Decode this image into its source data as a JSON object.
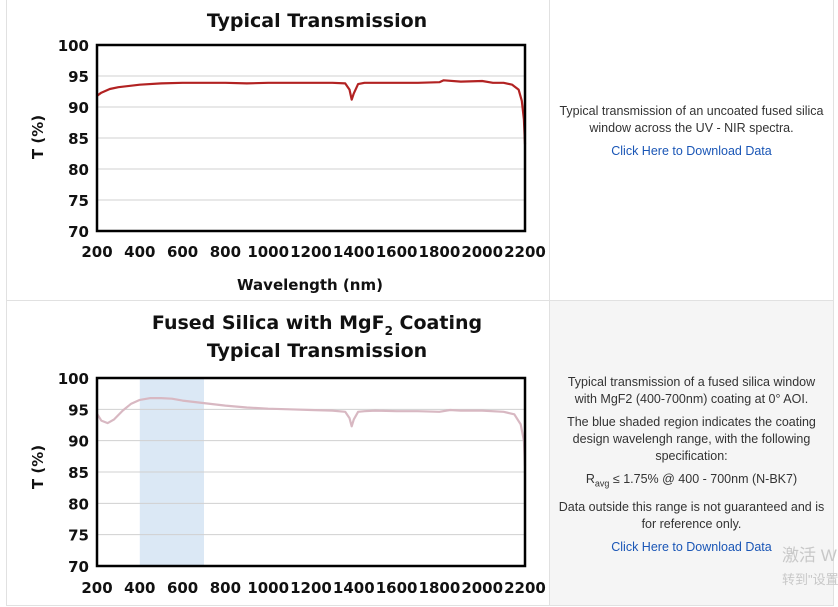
{
  "charts": [
    {
      "title_lines": [
        "Typical Transmission"
      ],
      "ylabel": "T (%)",
      "xlabel": "Wavelength (nm)",
      "description": [
        "Typical transmission of an uncoated fused silica window across the UV - NIR spectra."
      ],
      "link_text": "Click Here to Download Data"
    },
    {
      "title_main": "Fused Silica with MgF",
      "title_sub": "2",
      "title_end": " Coating",
      "title_line2": "Typical Transmission",
      "ylabel": "T (%)",
      "description": [
        "Typical transmission of a fused silica window with MgF2 (400-700nm) coating at 0° AOI.",
        "The blue shaded region indicates the coating design wavelengh range, with the following specification:"
      ],
      "spec": {
        "r": "R",
        "sub": "avg",
        "rest": " ≤ 1.75% @ 400 - 700nm (N-BK7)"
      },
      "description_after": "Data outside this range is not guaranteed and is for reference only.",
      "link_text": "Click Here to Download Data"
    }
  ],
  "watermark": {
    "line1": "激活 W",
    "line2": "转到\"设置"
  },
  "chart_data": [
    {
      "type": "line",
      "title": "Typical Transmission",
      "xlabel": "Wavelength (nm)",
      "ylabel": "T (%)",
      "xlim": [
        200,
        2200
      ],
      "ylim": [
        70,
        100
      ],
      "x_ticks": [
        200,
        400,
        600,
        800,
        1000,
        1200,
        1400,
        1600,
        1800,
        2000,
        2200
      ],
      "y_ticks": [
        70,
        75,
        80,
        85,
        90,
        95,
        100
      ],
      "grid": "horizontal",
      "color": "#b22222",
      "series": [
        {
          "x": [
            200,
            220,
            260,
            300,
            400,
            500,
            600,
            700,
            800,
            900,
            1000,
            1100,
            1200,
            1300,
            1360,
            1380,
            1390,
            1400,
            1420,
            1450,
            1500,
            1600,
            1700,
            1800,
            1820,
            1900,
            2000,
            2050,
            2100,
            2140,
            2170,
            2185,
            2195,
            2200
          ],
          "y": [
            91.8,
            92.3,
            92.9,
            93.2,
            93.6,
            93.8,
            93.9,
            93.9,
            93.9,
            93.8,
            93.9,
            93.9,
            93.9,
            93.9,
            93.8,
            92.8,
            91.2,
            92.2,
            93.7,
            93.9,
            93.9,
            93.9,
            93.9,
            94.0,
            94.3,
            94.1,
            94.2,
            93.9,
            93.9,
            93.6,
            92.8,
            91.0,
            88.0,
            84.0
          ]
        }
      ]
    },
    {
      "type": "line",
      "title": "Fused Silica with MgF2 Coating Typical Transmission",
      "xlabel": "",
      "ylabel": "T (%)",
      "xlim": [
        200,
        2200
      ],
      "ylim": [
        70,
        100
      ],
      "x_ticks": [
        200,
        400,
        600,
        800,
        1000,
        1200,
        1400,
        1600,
        1800,
        2000,
        2200
      ],
      "y_ticks": [
        70,
        75,
        80,
        85,
        90,
        95,
        100
      ],
      "grid": "horizontal",
      "color": "#d8b8c2",
      "shaded_range": [
        400,
        700
      ],
      "shade_color": "#dbe8f5",
      "series": [
        {
          "x": [
            200,
            220,
            250,
            280,
            320,
            360,
            400,
            450,
            500,
            550,
            600,
            700,
            800,
            900,
            1000,
            1100,
            1200,
            1300,
            1360,
            1380,
            1390,
            1400,
            1420,
            1450,
            1500,
            1600,
            1700,
            1800,
            1850,
            1900,
            2000,
            2100,
            2150,
            2180,
            2195,
            2200
          ],
          "y": [
            94.3,
            93.2,
            92.8,
            93.4,
            94.8,
            95.9,
            96.5,
            96.8,
            96.8,
            96.7,
            96.4,
            96.0,
            95.6,
            95.3,
            95.1,
            95.0,
            94.9,
            94.8,
            94.6,
            93.6,
            92.3,
            93.4,
            94.6,
            94.7,
            94.8,
            94.7,
            94.7,
            94.6,
            94.9,
            94.8,
            94.8,
            94.6,
            94.2,
            92.6,
            90.0,
            86.0
          ]
        }
      ]
    }
  ]
}
